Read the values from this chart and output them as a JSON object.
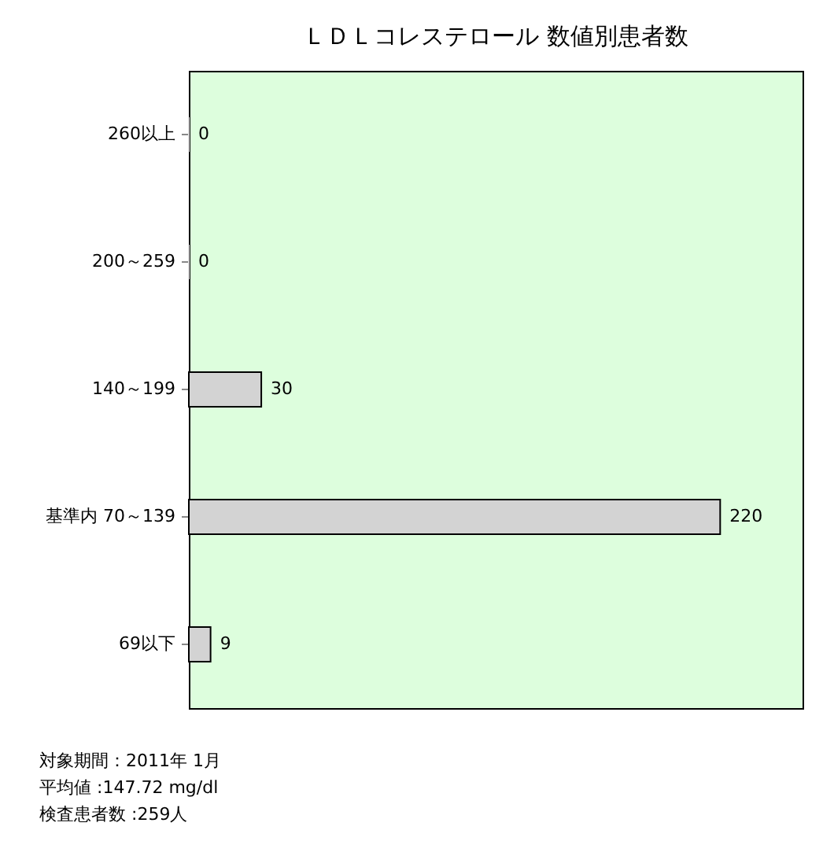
{
  "chart_data": {
    "type": "bar",
    "orientation": "horizontal",
    "title": "ＬＤＬコレステロール 数値別患者数",
    "categories": [
      "260以上",
      "200～259",
      "140～199",
      "基準内 70～139",
      "69以下"
    ],
    "values": [
      0,
      0,
      30,
      220,
      9
    ],
    "color": "#d3d3d3",
    "data_labels": true,
    "annotations": [
      "対象期間：2011年 1月",
      "平均値 :147.72 mg/dl",
      "検査患者数 :259人"
    ]
  }
}
